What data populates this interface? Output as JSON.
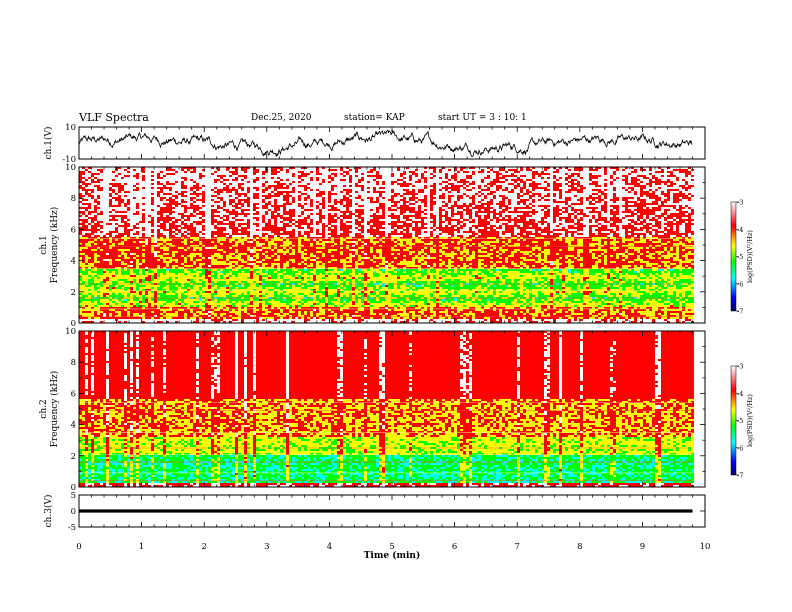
{
  "header": {
    "title": "VLF Spectra",
    "date": "Dec.25, 2020",
    "station": "station= KAP",
    "start_ut": "start  UT =  3 : 10: 1"
  },
  "chart_data": [
    {
      "type": "line",
      "name": "ch1-waveform",
      "ylabel": "ch.1(V)",
      "ylim": [
        -10,
        10
      ],
      "yticks": [
        "10",
        "-10"
      ],
      "xlim": [
        0,
        10
      ]
    },
    {
      "type": "heatmap",
      "name": "ch1-spectrogram",
      "ylabel_lines": [
        "ch.1",
        "Frequency  (kHz)"
      ],
      "ylim": [
        0,
        10
      ],
      "yticks": [
        "0",
        "2",
        "4",
        "6",
        "8",
        "10"
      ],
      "xlim": [
        0,
        10
      ],
      "colorbar": {
        "label": "log(PSD)(V²/Hz)",
        "range": [
          -7,
          -3
        ],
        "ticks": [
          "-3",
          "-4",
          "-5",
          "-6",
          "-7"
        ]
      }
    },
    {
      "type": "heatmap",
      "name": "ch2-spectrogram",
      "ylabel_lines": [
        "ch.2",
        "Frequency  (kHz)"
      ],
      "ylim": [
        0,
        10
      ],
      "yticks": [
        "0",
        "2",
        "4",
        "6",
        "8",
        "10"
      ],
      "xlim": [
        0,
        10
      ],
      "colorbar": {
        "label": "log(PSD)(V²/Hz)",
        "range": [
          -7,
          -3
        ],
        "ticks": [
          "-3",
          "-4",
          "-5",
          "-6",
          "-7"
        ]
      }
    },
    {
      "type": "line",
      "name": "ch3-waveform",
      "ylabel": "ch.3(V)",
      "ylim": [
        -5,
        5
      ],
      "yticks": [
        "5",
        "0",
        "-5"
      ],
      "xlim": [
        0,
        10
      ]
    }
  ],
  "xaxis": {
    "label": "Time  (min)",
    "ticks": [
      "0",
      "1",
      "2",
      "3",
      "4",
      "5",
      "6",
      "7",
      "8",
      "9",
      "10"
    ],
    "data_end_min": 9.8
  },
  "colormap": [
    "#000066",
    "#0000ff",
    "#00ffff",
    "#00ff00",
    "#ffff00",
    "#ff0000",
    "#ffffff"
  ]
}
